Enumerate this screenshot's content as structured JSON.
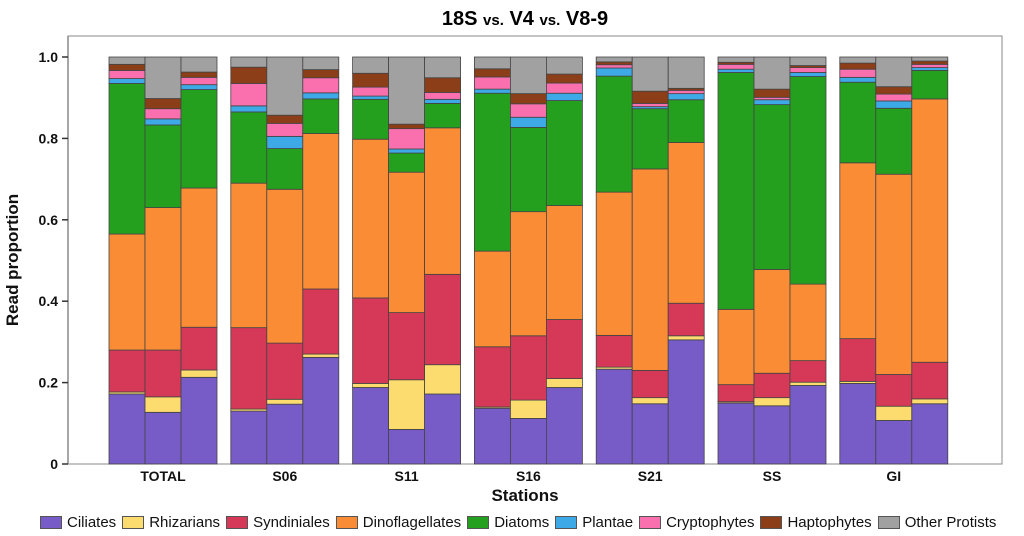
{
  "chart_data": {
    "type": "bar",
    "stacked": true,
    "title": "18S vs. V4 vs. V8-9",
    "title_parts": [
      "18S",
      "vs.",
      "V4",
      "vs.",
      "V8-9"
    ],
    "xlabel": "Stations",
    "ylabel": "Read proportion",
    "ylim": [
      0,
      1.0
    ],
    "yticks": [
      "0",
      "0.2",
      "0.4",
      "0.6",
      "0.8",
      "1.0"
    ],
    "ytick_values": [
      0,
      0.2,
      0.4,
      0.6,
      0.8,
      1.0
    ],
    "grid": false,
    "legend_position": "bottom",
    "bars_per_station": [
      "18S",
      "V4",
      "V8-9"
    ],
    "categories": [
      "TOTAL",
      "S06",
      "S11",
      "S16",
      "S21",
      "SS",
      "GI"
    ],
    "series": [
      {
        "name": "Ciliates",
        "color": "#775BC7"
      },
      {
        "name": "Rhizarians",
        "color": "#FCDC6F"
      },
      {
        "name": "Syndiniales",
        "color": "#D63858"
      },
      {
        "name": "Dinoflagellates",
        "color": "#FA8C35"
      },
      {
        "name": "Diatoms",
        "color": "#24A01E"
      },
      {
        "name": "Plantae",
        "color": "#3DA9E6"
      },
      {
        "name": "Cryptophytes",
        "color": "#FA70AE"
      },
      {
        "name": "Haptophytes",
        "color": "#8B3E17"
      },
      {
        "name": "Other Protists",
        "color": "#A1A1A1"
      }
    ],
    "stations": [
      {
        "name": "TOTAL",
        "bars": [
          [
            0.172,
            0.005,
            0.103,
            0.285,
            0.37,
            0.012,
            0.02,
            0.015,
            0.018
          ],
          [
            0.127,
            0.038,
            0.115,
            0.35,
            0.203,
            0.015,
            0.025,
            0.025,
            0.102
          ],
          [
            0.213,
            0.018,
            0.105,
            0.342,
            0.242,
            0.012,
            0.018,
            0.013,
            0.037
          ]
        ]
      },
      {
        "name": "S06",
        "bars": [
          [
            0.13,
            0.005,
            0.2,
            0.355,
            0.175,
            0.015,
            0.055,
            0.04,
            0.025
          ],
          [
            0.147,
            0.012,
            0.138,
            0.378,
            0.1,
            0.03,
            0.032,
            0.02,
            0.143
          ],
          [
            0.262,
            0.008,
            0.16,
            0.382,
            0.085,
            0.015,
            0.037,
            0.02,
            0.031
          ]
        ]
      },
      {
        "name": "S11",
        "bars": [
          [
            0.188,
            0.01,
            0.21,
            0.39,
            0.098,
            0.008,
            0.022,
            0.034,
            0.04
          ],
          [
            0.085,
            0.122,
            0.165,
            0.345,
            0.047,
            0.01,
            0.05,
            0.011,
            0.165
          ],
          [
            0.172,
            0.072,
            0.222,
            0.36,
            0.06,
            0.01,
            0.017,
            0.036,
            0.051
          ]
        ]
      },
      {
        "name": "S16",
        "bars": [
          [
            0.137,
            0.003,
            0.148,
            0.235,
            0.388,
            0.01,
            0.03,
            0.02,
            0.029
          ],
          [
            0.112,
            0.045,
            0.158,
            0.305,
            0.207,
            0.025,
            0.033,
            0.025,
            0.09
          ],
          [
            0.188,
            0.022,
            0.145,
            0.28,
            0.258,
            0.018,
            0.025,
            0.022,
            0.042
          ]
        ]
      },
      {
        "name": "S21",
        "bars": [
          [
            0.233,
            0.005,
            0.078,
            0.352,
            0.285,
            0.02,
            0.008,
            0.007,
            0.012
          ],
          [
            0.148,
            0.015,
            0.067,
            0.495,
            0.148,
            0.005,
            0.008,
            0.03,
            0.084
          ],
          [
            0.305,
            0.01,
            0.08,
            0.395,
            0.105,
            0.015,
            0.008,
            0.005,
            0.077
          ]
        ]
      },
      {
        "name": "SS",
        "bars": [
          [
            0.15,
            0.003,
            0.042,
            0.185,
            0.582,
            0.008,
            0.012,
            0.005,
            0.013
          ],
          [
            0.143,
            0.02,
            0.06,
            0.255,
            0.405,
            0.012,
            0.006,
            0.02,
            0.079
          ],
          [
            0.193,
            0.008,
            0.053,
            0.188,
            0.51,
            0.01,
            0.012,
            0.005,
            0.021
          ]
        ]
      },
      {
        "name": "GI",
        "bars": [
          [
            0.198,
            0.005,
            0.105,
            0.432,
            0.198,
            0.012,
            0.02,
            0.015,
            0.015
          ],
          [
            0.107,
            0.035,
            0.078,
            0.492,
            0.162,
            0.018,
            0.017,
            0.018,
            0.073
          ],
          [
            0.148,
            0.012,
            0.09,
            0.647,
            0.07,
            0.007,
            0.008,
            0.008,
            0.01
          ]
        ]
      }
    ]
  }
}
